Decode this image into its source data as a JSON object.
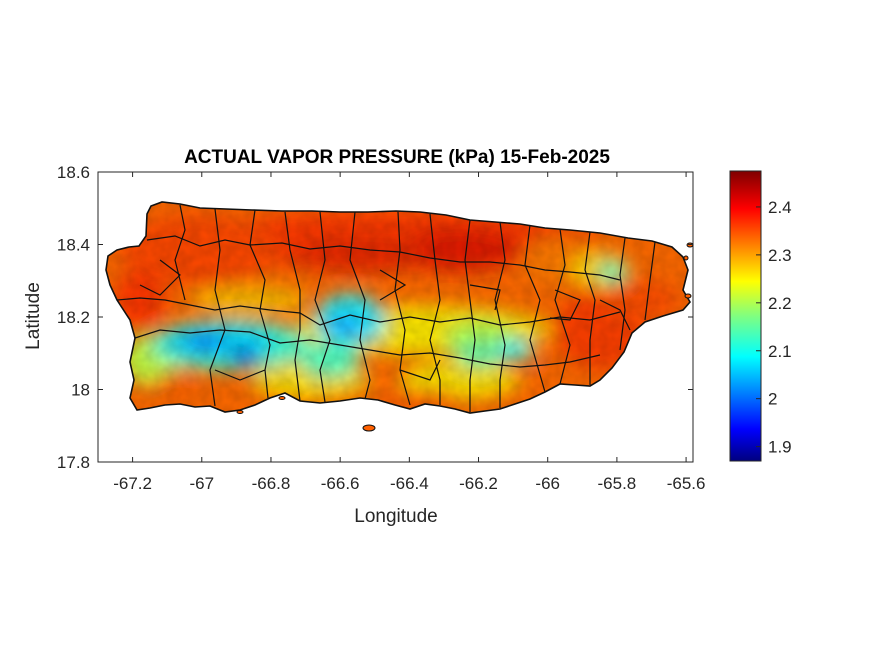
{
  "chart_data": {
    "type": "heatmap",
    "title": "ACTUAL VAPOR PRESSURE (kPa) 15-Feb-2025",
    "xlabel": "Longitude",
    "ylabel": "Latitude",
    "xlim": [
      -67.3,
      -65.58
    ],
    "ylim": [
      17.8,
      18.6
    ],
    "xticks": [
      "-67.2",
      "-67",
      "-66.8",
      "-66.6",
      "-66.4",
      "-66.2",
      "-66",
      "-65.8",
      "-65.6"
    ],
    "xtick_values": [
      -67.2,
      -67.0,
      -66.8,
      -66.6,
      -66.4,
      -66.2,
      -66.0,
      -65.8,
      -65.6
    ],
    "yticks": [
      "17.8",
      "18",
      "18.2",
      "18.4",
      "18.6"
    ],
    "ytick_values": [
      17.8,
      18.0,
      18.2,
      18.4,
      18.6
    ],
    "colorbar": {
      "colormap": "jet",
      "range": [
        1.87,
        2.475
      ],
      "ticks": [
        "1.9",
        "2",
        "2.1",
        "2.2",
        "2.3",
        "2.4"
      ],
      "tick_values": [
        1.9,
        2.0,
        2.1,
        2.2,
        2.3,
        2.4
      ]
    },
    "grid": false
  }
}
